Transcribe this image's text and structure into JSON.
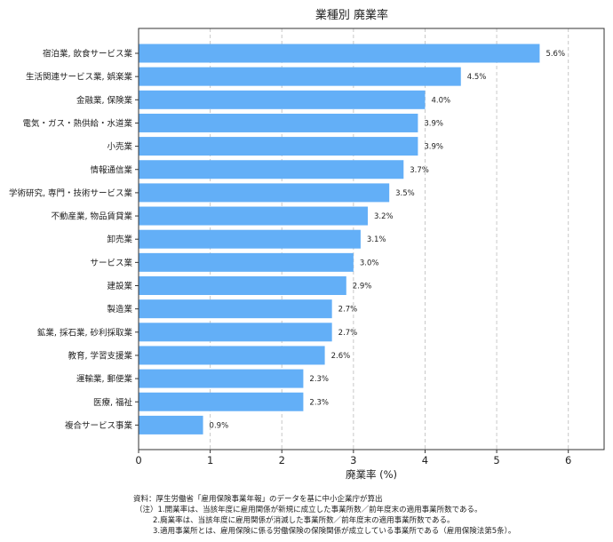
{
  "chart_data": {
    "type": "bar",
    "orientation": "horizontal",
    "title": "業種別 廃業率",
    "xlabel": "廃業率 (%)",
    "ylabel": "",
    "xlim": [
      0,
      6.5
    ],
    "x_ticks": [
      "0",
      "1",
      "2",
      "3",
      "4",
      "5",
      "6"
    ],
    "grid": "vertical dashed",
    "bar_color": "#63aff7",
    "categories": [
      "宿泊業, 飲食サービス業",
      "生活関連サービス業, 娯楽業",
      "金融業, 保険業",
      "電気・ガス・熱供給・水道業",
      "小売業",
      "情報通信業",
      "学術研究, 専門・技術サービス業",
      "不動産業, 物品賃貸業",
      "卸売業",
      "サービス業",
      "建設業",
      "製造業",
      "鉱業, 採石業, 砂利採取業",
      "教育, 学習支援業",
      "運輸業, 郵便業",
      "医療, 福祉",
      "複合サービス事業"
    ],
    "values": [
      5.6,
      4.5,
      4.0,
      3.9,
      3.9,
      3.7,
      3.5,
      3.2,
      3.1,
      3.0,
      2.9,
      2.7,
      2.7,
      2.6,
      2.3,
      2.3,
      0.9
    ],
    "value_labels": [
      "5.6%",
      "4.5%",
      "4.0%",
      "3.9%",
      "3.9%",
      "3.7%",
      "3.5%",
      "3.2%",
      "3.1%",
      "3.0%",
      "2.9%",
      "2.7%",
      "2.7%",
      "2.6%",
      "2.3%",
      "2.3%",
      "0.9%"
    ]
  },
  "notes": {
    "source": "資料：厚生労働省「雇用保険事業年報」のデータを基に中小企業庁が算出",
    "note1": "（注）1.開業率は、当該年度に雇用関係が新規に成立した事業所数／前年度末の適用事業所数である。",
    "note2": "2.廃業率は、当該年度に雇用関係が消滅した事業所数／前年度末の適用事業所数である。",
    "note3": "3.適用事業所とは、雇用保険に係る労働保険の保険関係が成立している事業所である（雇用保険法第5条）。"
  }
}
